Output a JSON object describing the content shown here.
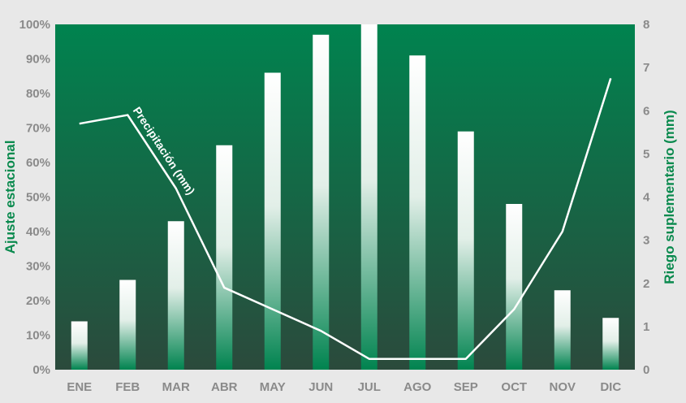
{
  "chart_data": {
    "type": "bar",
    "categories": [
      "ENE",
      "FEB",
      "MAR",
      "ABR",
      "MAY",
      "JUN",
      "JUL",
      "AGO",
      "SEP",
      "OCT",
      "NOV",
      "DIC"
    ],
    "series": [
      {
        "name": "",
        "type": "bar",
        "axis": "left",
        "values": [
          14,
          26,
          43,
          65,
          86,
          97,
          100,
          91,
          69,
          48,
          23,
          15
        ]
      },
      {
        "name": "Precipitación (mm)",
        "type": "line",
        "axis": "right",
        "values": [
          5.7,
          5.9,
          4.2,
          1.9,
          1.4,
          0.9,
          0.25,
          0.25,
          0.25,
          1.4,
          3.2,
          6.75
        ]
      }
    ],
    "ylabel": "Ajuste estacional",
    "y2label": "Riego suplementario (mm)",
    "ylim": [
      0,
      100
    ],
    "y2lim": [
      0,
      8
    ],
    "yticks": [
      "0%",
      "10%",
      "20%",
      "30%",
      "40%",
      "50%",
      "60%",
      "70%",
      "80%",
      "90%",
      "100%"
    ],
    "y2ticks": [
      "0",
      "1",
      "2",
      "3",
      "4",
      "5",
      "6",
      "7",
      "8"
    ],
    "grid": false,
    "colors": {
      "plot_top": "#00834f",
      "plot_bottom": "#2b4a3c",
      "bar_top": "#ffffff",
      "bar_bottom": "#00834f",
      "line": "#ffffff",
      "axis_title": "#0a8a4e",
      "tick_text": "#8a8a8a",
      "page_bg": "#e8e8e8"
    }
  }
}
